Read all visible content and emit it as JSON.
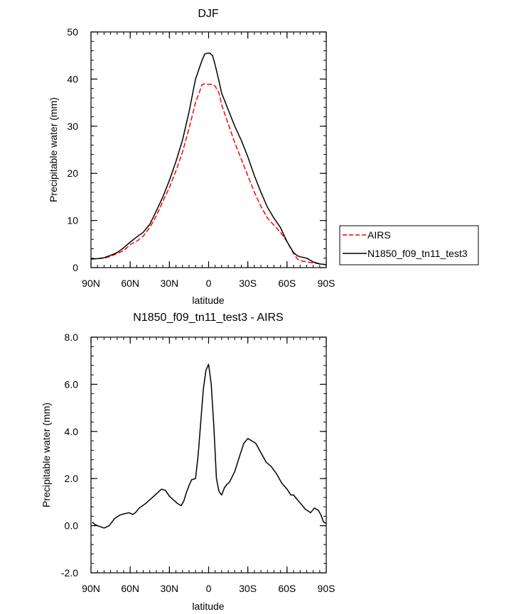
{
  "chart_data": [
    {
      "type": "line",
      "title": "DJF",
      "xlabel": "latitude",
      "ylabel": "Precipitable water (mm)",
      "xlim": [
        90,
        -90
      ],
      "ylim": [
        0,
        50
      ],
      "xticks": [
        90,
        60,
        30,
        0,
        -30,
        -60,
        -90
      ],
      "xtick_labels": [
        "90N",
        "60N",
        "30N",
        "0",
        "30S",
        "60S",
        "90S"
      ],
      "yticks": [
        0,
        10,
        20,
        30,
        40,
        50
      ],
      "ytick_labels": [
        "0",
        "10",
        "20",
        "30",
        "40",
        "50"
      ],
      "legend": {
        "position": "right",
        "entries": [
          "AIRS",
          "N1850_f09_tn11_test3"
        ]
      },
      "series": [
        {
          "name": "AIRS",
          "color": "#ff0000",
          "dash": "dashed",
          "x": [
            90,
            85,
            80,
            75,
            70,
            65,
            60,
            55,
            50,
            45,
            40,
            35,
            30,
            25,
            20,
            15,
            10,
            5,
            3,
            1,
            -1,
            -3,
            -5,
            -8,
            -10,
            -15,
            -20,
            -25,
            -30,
            -35,
            -40,
            -45,
            -50,
            -55,
            -60,
            -65,
            -68,
            -70,
            -75,
            -80,
            -85,
            -88,
            -90
          ],
          "y": [
            1.8,
            1.9,
            2.0,
            2.4,
            3.0,
            3.6,
            4.9,
            5.6,
            6.7,
            8.5,
            11.0,
            14.0,
            17.0,
            20.5,
            24.5,
            29.5,
            35.0,
            38.8,
            39.0,
            38.9,
            38.9,
            38.9,
            38.5,
            37.0,
            34.5,
            30.5,
            26.5,
            23.0,
            19.5,
            16.0,
            13.0,
            10.5,
            9.0,
            7.5,
            5.5,
            3.0,
            1.8,
            1.5,
            1.2,
            1.0,
            0.8,
            0.7,
            0.6
          ]
        },
        {
          "name": "N1850_f09_tn11_test3",
          "color": "#000000",
          "dash": "solid",
          "x": [
            90,
            85,
            80,
            75,
            70,
            65,
            60,
            55,
            50,
            45,
            40,
            35,
            30,
            25,
            20,
            15,
            10,
            5,
            3,
            1,
            -1,
            -3,
            -5,
            -8,
            -10,
            -15,
            -20,
            -25,
            -30,
            -35,
            -40,
            -45,
            -50,
            -55,
            -60,
            -65,
            -68,
            -70,
            -75,
            -80,
            -85,
            -88,
            -90
          ],
          "y": [
            1.8,
            1.9,
            2.1,
            2.6,
            3.2,
            4.2,
            5.4,
            6.5,
            7.5,
            9.2,
            12.0,
            15.0,
            18.5,
            22.5,
            27.0,
            33.0,
            40.0,
            44.0,
            45.3,
            45.5,
            45.5,
            45.0,
            43.0,
            39.5,
            37.0,
            33.5,
            30.0,
            27.0,
            23.5,
            19.5,
            16.0,
            12.8,
            10.5,
            8.5,
            5.5,
            3.2,
            2.5,
            2.3,
            2.0,
            1.2,
            0.8,
            0.7,
            0.6
          ]
        }
      ]
    },
    {
      "type": "line",
      "title": "N1850_f09_tn11_test3 - AIRS",
      "xlabel": "latitude",
      "ylabel": "Precipitable water (mm)",
      "xlim": [
        90,
        -90
      ],
      "ylim": [
        -2,
        8
      ],
      "xticks": [
        90,
        60,
        30,
        0,
        -30,
        -60,
        -90
      ],
      "xtick_labels": [
        "90N",
        "60N",
        "30N",
        "0",
        "30S",
        "60S",
        "90S"
      ],
      "yticks": [
        -2,
        0,
        2,
        4,
        6,
        8
      ],
      "ytick_labels": [
        "-2.0",
        "0.0",
        "2.0",
        "4.0",
        "6.0",
        "8.0"
      ],
      "series": [
        {
          "name": "N1850_f09_tn11_test3 - AIRS",
          "color": "#000000",
          "dash": "solid",
          "x": [
            89,
            87,
            85,
            80,
            76,
            74,
            72,
            68,
            65,
            61,
            58,
            56,
            53,
            48,
            44,
            40,
            36,
            33,
            30,
            27,
            24,
            21,
            19,
            17,
            15,
            13,
            10,
            8,
            4,
            2,
            0,
            -2,
            -4,
            -6,
            -8,
            -10,
            -12,
            -14,
            -16,
            -20,
            -24,
            -27,
            -30,
            -33,
            -36,
            -40,
            -44,
            -48,
            -52,
            -56,
            -60,
            -63,
            -65,
            -68,
            -71,
            -74,
            -78,
            -81,
            -84,
            -86,
            -88,
            -90
          ],
          "y": [
            0.15,
            0.05,
            0.0,
            -0.1,
            0.0,
            0.15,
            0.3,
            0.45,
            0.5,
            0.55,
            0.48,
            0.55,
            0.75,
            0.95,
            1.15,
            1.35,
            1.55,
            1.5,
            1.25,
            1.1,
            0.95,
            0.85,
            1.05,
            1.4,
            1.7,
            1.95,
            2.0,
            3.0,
            5.8,
            6.6,
            6.85,
            6.0,
            4.2,
            2.0,
            1.45,
            1.3,
            1.6,
            1.75,
            1.85,
            2.3,
            3.0,
            3.5,
            3.7,
            3.6,
            3.5,
            3.1,
            2.7,
            2.5,
            2.2,
            1.8,
            1.55,
            1.3,
            1.3,
            1.1,
            0.9,
            0.7,
            0.55,
            0.75,
            0.65,
            0.45,
            0.15,
            0.1
          ]
        }
      ]
    }
  ]
}
